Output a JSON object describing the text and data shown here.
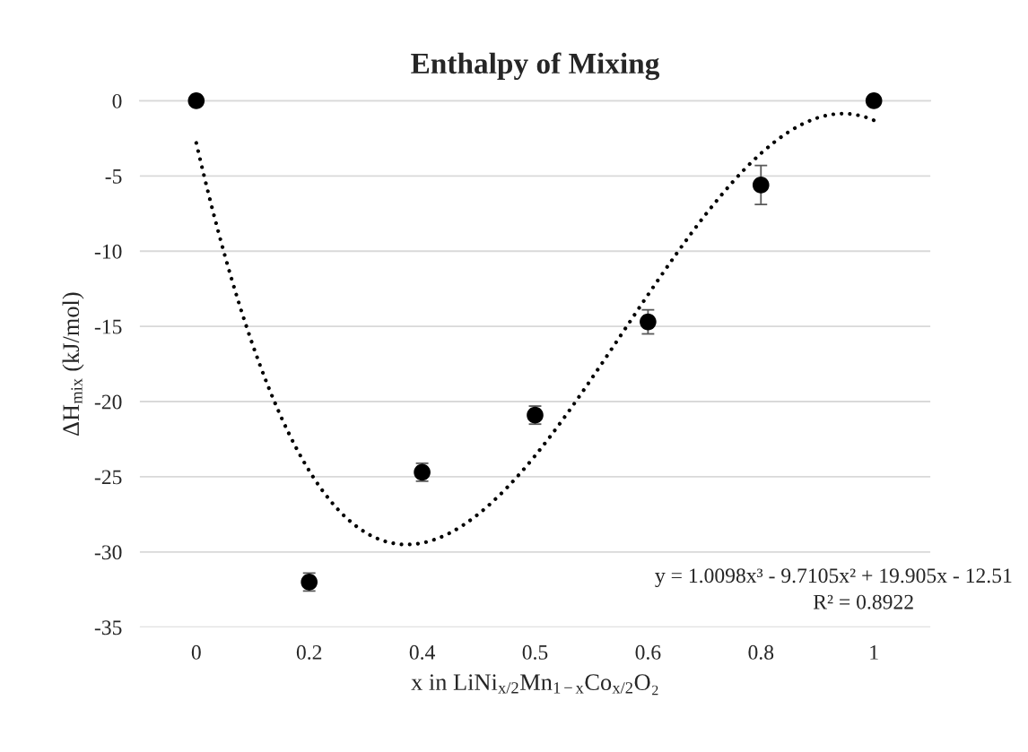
{
  "chart_data": {
    "type": "scatter",
    "title": "Enthalpy of Mixing",
    "xlabel": "x in LiNi$_{x/2}$Mn$_{1−x}$Co$_{x/2}$O₂",
    "ylabel": "ΔH$_{mix}$ (kJ/mol)",
    "categories": [
      "0",
      "0.2",
      "0.4",
      "0.5",
      "0.6",
      "0.8",
      "1"
    ],
    "ylim": [
      -35,
      0
    ],
    "yticks": [
      0,
      -5,
      -10,
      -15,
      -20,
      -25,
      -30,
      -35
    ],
    "grid": "y",
    "legend": false,
    "series": [
      {
        "color": "#000000",
        "marker": "circle",
        "values": [
          0,
          -32.0,
          -24.7,
          -20.9,
          -14.7,
          -5.6,
          0
        ],
        "errors": [
          null,
          0.6,
          0.6,
          0.6,
          0.8,
          1.3,
          null
        ]
      },
      {
        "type": "line",
        "color": "#000000",
        "line_style": "dotted",
        "marker": "none",
        "values": [
          -2.8,
          -24.6,
          -29.4,
          -23.6,
          -12.9,
          -3.5,
          -1.3
        ]
      }
    ],
    "annotations": [
      "y = 1.0098x³ - 9.7105x² + 19.905x - 12.51",
      "R² = 0.8922"
    ]
  }
}
